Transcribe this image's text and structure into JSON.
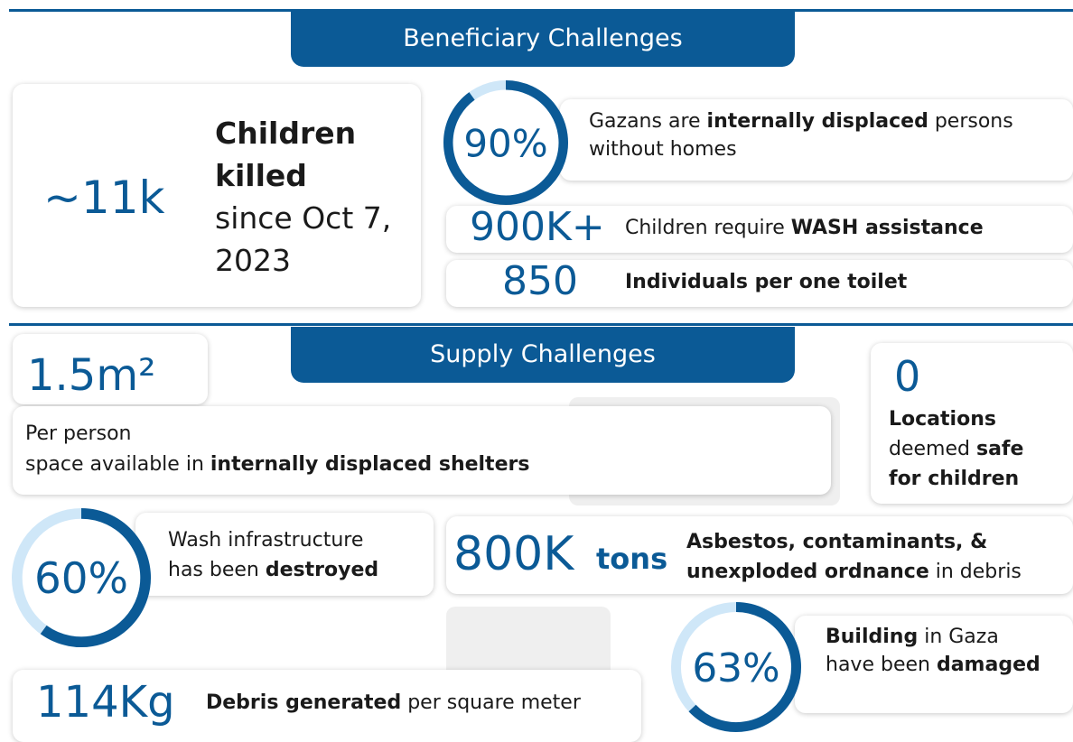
{
  "beneficiary": {
    "title": "Beneficiary Challenges",
    "killed": {
      "figure": "~11k",
      "bold": "Children killed",
      "rest": "since Oct 7, 2023"
    },
    "displaced": {
      "ring": {
        "value": 90,
        "label": "90%"
      },
      "t1": "Gazans are ",
      "t2": "internally displaced",
      "t3": " persons without homes"
    },
    "wash": {
      "figure": "900K+",
      "t1": "Children require ",
      "t2": "WASH assistance"
    },
    "toilet": {
      "figure": "850",
      "text": "Individuals per one toilet"
    }
  },
  "supply": {
    "title": "Supply Challenges",
    "space": {
      "figure": "1.5m²",
      "t1": "Per person",
      "t2": "space available in ",
      "t3": "internally displaced shelters"
    },
    "safe": {
      "figure": "0",
      "t1": "Locations",
      "t2": "deemed ",
      "t3": "safe",
      "t4": "for children"
    },
    "infra": {
      "ring": {
        "value": 60,
        "label": "60%"
      },
      "t1": "Wash infrastructure",
      "t2": "has been ",
      "t3": "destroyed"
    },
    "debris": {
      "figure": "800K",
      "unit": "tons",
      "t1": "Asbestos, contaminants, &",
      "t2": "unexploded ordnance",
      "t3": " in debris"
    },
    "building": {
      "ring": {
        "value": 63,
        "label": "63%"
      },
      "t1": "Building",
      "t2": " in Gaza have been ",
      "t3": "damaged"
    },
    "generated": {
      "figure": "114Kg",
      "t1": "Debris generated",
      "t2": " per square meter"
    }
  }
}
